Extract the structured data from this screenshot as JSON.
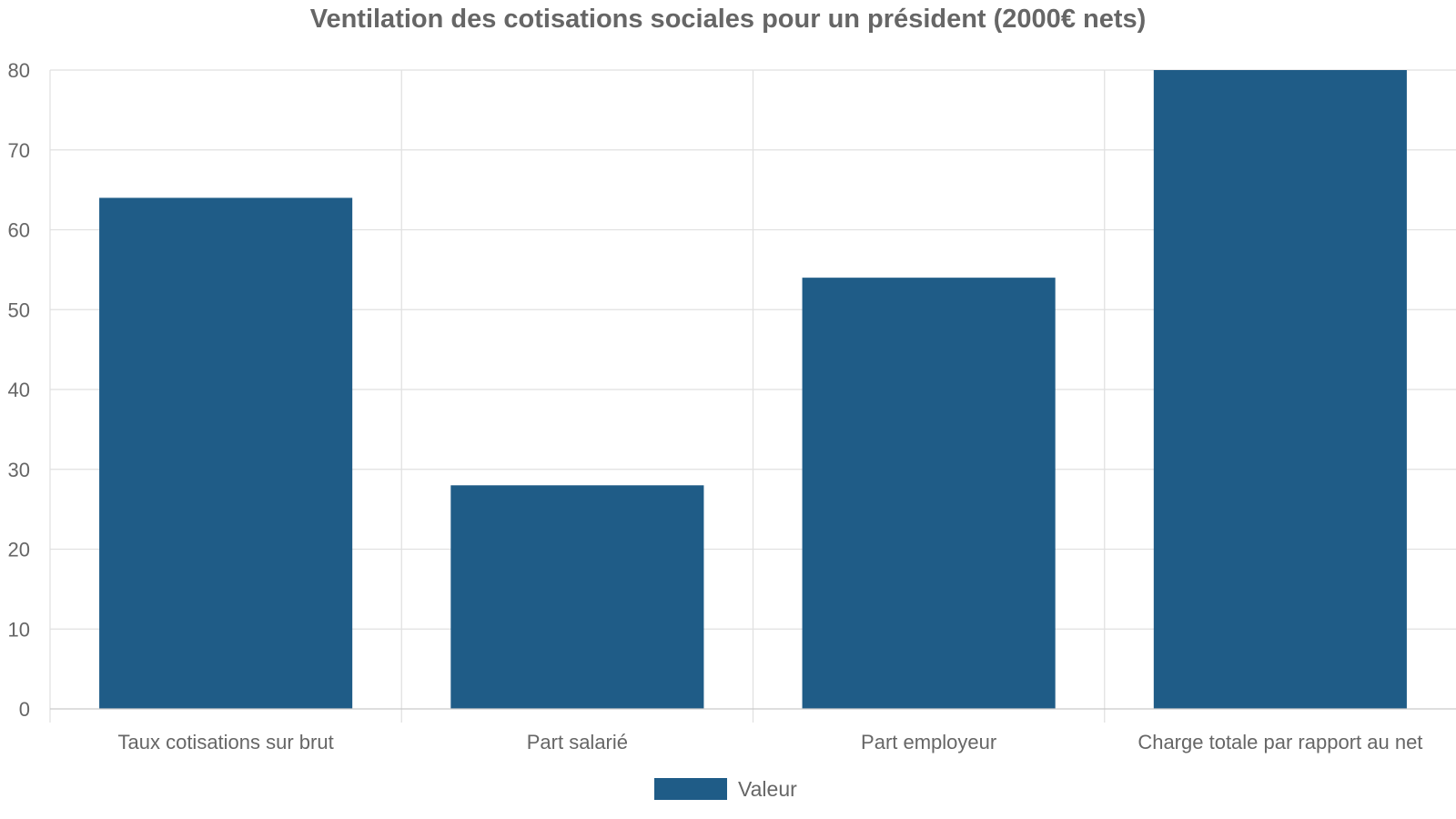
{
  "chart_data": {
    "type": "bar",
    "title": "Ventilation des cotisations sociales pour un président (2000€ nets)",
    "xlabel": "",
    "ylabel": "",
    "categories": [
      "Taux cotisations sur brut",
      "Part salarié",
      "Part employeur",
      "Charge totale par rapport au net"
    ],
    "series": [
      {
        "name": "Valeur",
        "values": [
          64,
          28,
          54,
          80
        ],
        "color": "#1f5c87"
      }
    ],
    "ylim": [
      0,
      80
    ],
    "yticks": [
      0,
      10,
      20,
      30,
      40,
      50,
      60,
      70,
      80
    ],
    "grid": true,
    "legend_position": "bottom-center"
  }
}
